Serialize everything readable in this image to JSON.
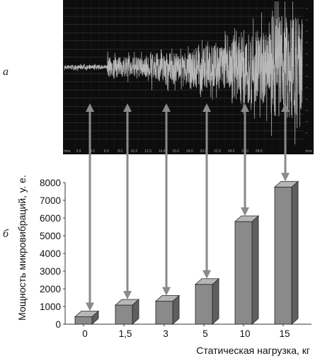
{
  "panels": {
    "top_letter": "а",
    "bottom_letter": "б"
  },
  "colors": {
    "oscillogram_bg": "#0d0d0d",
    "signal": "#b8b8b8",
    "grid": "#3a4a44",
    "bar_front": "#8a8a8a",
    "bar_top": "#b6b6b6",
    "bar_side": "#5f5f5f",
    "arrow": "#8a8a8a"
  },
  "oscillogram": {
    "time_ticks": [
      "2.0",
      "4.0",
      "6.0",
      "8.0",
      "10.0",
      "12.0",
      "14.0",
      "16.0",
      "18.0",
      "20.0",
      "22.0",
      "24.0",
      "26.0",
      "28.0"
    ],
    "start_label": "hms",
    "end_label": "hms"
  },
  "chart_data": {
    "type": "bar",
    "categories": [
      "0",
      "1,5",
      "3",
      "5",
      "10",
      "15"
    ],
    "values": [
      420,
      1080,
      1300,
      2250,
      5800,
      7750
    ],
    "xlabel": "Статическая нагрузка, кг",
    "ylabel": "Мощность микровибраций, у. е.",
    "ylim": [
      0,
      8000
    ],
    "yticks": [
      "0",
      "1000",
      "2000",
      "3000",
      "4000",
      "5000",
      "6000",
      "7000",
      "8000"
    ],
    "grid": false,
    "style": "3d-column"
  }
}
